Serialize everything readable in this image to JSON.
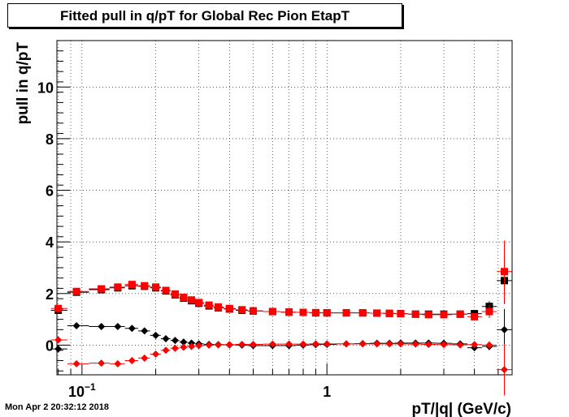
{
  "title": "Fitted pull in q/pT for Global Rec Pion EtapT",
  "timestamp": "Mon Apr  2 20:32:12 2018",
  "colors": {
    "series_black": "#000000",
    "series_red": "#ff0000",
    "grid": "#000000"
  },
  "chart_data": {
    "type": "scatter",
    "title": "Fitted pull in q/pT for Global Rec Pion EtapT",
    "xlabel": "pT/|q| (GeV/c)",
    "ylabel": "pull in q/pT",
    "xscale": "log",
    "xlim": [
      0.079,
      5.7
    ],
    "ylim": [
      -1.15,
      11.8
    ],
    "grid": true,
    "x_tick_labels": [
      {
        "value": 0.1,
        "base": "10",
        "exp": "−1"
      },
      {
        "value": 1,
        "base": "1",
        "exp": ""
      }
    ],
    "y_ticks": [
      0,
      2,
      4,
      6,
      8,
      10
    ],
    "series": [
      {
        "marker": "square",
        "color": "#000000",
        "x": [
          0.08,
          0.095,
          0.12,
          0.14,
          0.16,
          0.18,
          0.2,
          0.22,
          0.24,
          0.26,
          0.28,
          0.3,
          0.33,
          0.36,
          0.4,
          0.45,
          0.5,
          0.6,
          0.7,
          0.8,
          0.9,
          1.0,
          1.2,
          1.4,
          1.6,
          1.8,
          2.0,
          2.3,
          2.6,
          3.0,
          3.5,
          4.0,
          4.6,
          5.3
        ],
        "y": [
          1.35,
          2.05,
          2.15,
          2.22,
          2.3,
          2.28,
          2.22,
          2.1,
          1.95,
          1.82,
          1.72,
          1.62,
          1.52,
          1.45,
          1.4,
          1.35,
          1.32,
          1.3,
          1.28,
          1.27,
          1.25,
          1.25,
          1.25,
          1.25,
          1.24,
          1.23,
          1.22,
          1.2,
          1.2,
          1.2,
          1.2,
          1.22,
          1.5,
          2.5
        ],
        "yerr": [
          0.12,
          0.06,
          0.05,
          0.05,
          0.05,
          0.05,
          0.04,
          0.04,
          0.04,
          0.04,
          0.03,
          0.03,
          0.03,
          0.03,
          0.03,
          0.03,
          0.03,
          0.03,
          0.03,
          0.03,
          0.03,
          0.03,
          0.03,
          0.03,
          0.03,
          0.03,
          0.04,
          0.04,
          0.05,
          0.06,
          0.07,
          0.1,
          0.2,
          0.9
        ]
      },
      {
        "marker": "square",
        "color": "#ff0000",
        "x": [
          0.08,
          0.095,
          0.12,
          0.14,
          0.16,
          0.18,
          0.2,
          0.22,
          0.24,
          0.26,
          0.28,
          0.3,
          0.33,
          0.36,
          0.4,
          0.45,
          0.5,
          0.6,
          0.7,
          0.8,
          0.9,
          1.0,
          1.2,
          1.4,
          1.6,
          1.8,
          2.0,
          2.3,
          2.6,
          3.0,
          3.5,
          4.0,
          4.6,
          5.3
        ],
        "y": [
          1.42,
          2.08,
          2.18,
          2.25,
          2.35,
          2.3,
          2.25,
          2.12,
          1.98,
          1.85,
          1.75,
          1.65,
          1.55,
          1.48,
          1.42,
          1.37,
          1.33,
          1.3,
          1.28,
          1.27,
          1.26,
          1.25,
          1.25,
          1.25,
          1.24,
          1.23,
          1.22,
          1.2,
          1.18,
          1.18,
          1.2,
          1.1,
          1.3,
          2.85
        ],
        "yerr": [
          0.12,
          0.06,
          0.05,
          0.05,
          0.05,
          0.05,
          0.04,
          0.04,
          0.04,
          0.04,
          0.03,
          0.03,
          0.03,
          0.03,
          0.03,
          0.03,
          0.03,
          0.03,
          0.03,
          0.03,
          0.03,
          0.03,
          0.03,
          0.03,
          0.03,
          0.03,
          0.04,
          0.04,
          0.05,
          0.06,
          0.07,
          0.1,
          0.25,
          1.2
        ]
      },
      {
        "marker": "diamond",
        "color": "#000000",
        "x": [
          0.08,
          0.095,
          0.12,
          0.14,
          0.16,
          0.18,
          0.2,
          0.22,
          0.24,
          0.26,
          0.28,
          0.3,
          0.33,
          0.36,
          0.4,
          0.45,
          0.5,
          0.6,
          0.7,
          0.8,
          0.9,
          1.0,
          1.2,
          1.4,
          1.6,
          1.8,
          2.0,
          2.3,
          2.6,
          3.0,
          3.5,
          4.0,
          4.6,
          5.3
        ],
        "y": [
          -0.15,
          0.75,
          0.72,
          0.72,
          0.65,
          0.55,
          0.38,
          0.25,
          0.18,
          0.12,
          0.08,
          0.05,
          0.03,
          0.02,
          0.01,
          0.0,
          -0.02,
          -0.02,
          -0.02,
          0.0,
          0.02,
          0.03,
          0.05,
          0.06,
          0.07,
          0.07,
          0.08,
          0.08,
          0.08,
          0.07,
          0.05,
          -0.1,
          -0.05,
          0.6
        ],
        "yerr": [
          0.1,
          0.05,
          0.04,
          0.04,
          0.04,
          0.04,
          0.03,
          0.03,
          0.03,
          0.03,
          0.02,
          0.02,
          0.02,
          0.02,
          0.02,
          0.02,
          0.02,
          0.02,
          0.02,
          0.02,
          0.02,
          0.02,
          0.02,
          0.02,
          0.02,
          0.02,
          0.03,
          0.03,
          0.04,
          0.05,
          0.06,
          0.08,
          0.15,
          0.8
        ]
      },
      {
        "marker": "diamond",
        "color": "#ff0000",
        "x": [
          0.08,
          0.095,
          0.12,
          0.14,
          0.16,
          0.18,
          0.2,
          0.22,
          0.24,
          0.26,
          0.28,
          0.3,
          0.33,
          0.36,
          0.4,
          0.45,
          0.5,
          0.6,
          0.7,
          0.8,
          0.9,
          1.0,
          1.2,
          1.4,
          1.6,
          1.8,
          2.0,
          2.3,
          2.6,
          3.0,
          3.5,
          4.0,
          4.6,
          5.3
        ],
        "y": [
          0.2,
          -0.72,
          -0.7,
          -0.72,
          -0.6,
          -0.5,
          -0.35,
          -0.2,
          -0.12,
          -0.08,
          -0.05,
          -0.02,
          0.0,
          0.01,
          0.02,
          0.03,
          0.03,
          0.04,
          0.04,
          0.04,
          0.05,
          0.05,
          0.05,
          0.05,
          0.05,
          0.05,
          0.05,
          0.04,
          0.03,
          0.02,
          0.01,
          0.02,
          0.0,
          -0.95
        ],
        "yerr": [
          0.1,
          0.05,
          0.04,
          0.04,
          0.04,
          0.04,
          0.03,
          0.03,
          0.03,
          0.03,
          0.02,
          0.02,
          0.02,
          0.02,
          0.02,
          0.02,
          0.02,
          0.02,
          0.02,
          0.02,
          0.02,
          0.02,
          0.02,
          0.02,
          0.02,
          0.02,
          0.03,
          0.03,
          0.04,
          0.05,
          0.06,
          0.08,
          0.15,
          1.0
        ]
      }
    ]
  }
}
